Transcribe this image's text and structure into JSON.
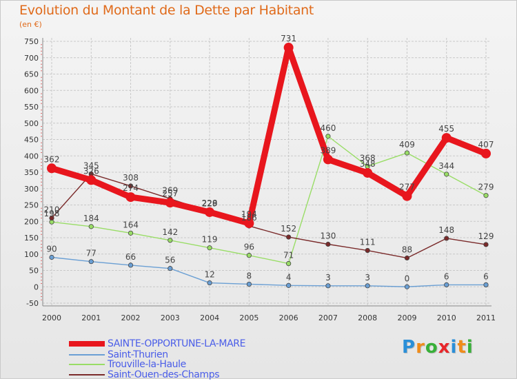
{
  "chart_data": {
    "type": "line",
    "title": "Evolution du Montant de la Dette par Habitant",
    "subtitle": "(en €)",
    "xlabel": "",
    "ylabel": "",
    "x": [
      "2000",
      "2001",
      "2002",
      "2003",
      "2004",
      "2005",
      "2006",
      "2007",
      "2008",
      "2009",
      "2010",
      "2011"
    ],
    "ylim": [
      -50,
      750
    ],
    "yticks": [
      -50,
      0,
      50,
      100,
      150,
      200,
      250,
      300,
      350,
      400,
      450,
      500,
      550,
      600,
      650,
      700,
      750
    ],
    "grid": true,
    "legend_position": "bottom-left",
    "series": [
      {
        "name": "SAINTE-OPPORTUNE-LA-MARE",
        "color": "#e8161d",
        "bold": true,
        "values": [
          362,
          326,
          274,
          257,
          228,
          194,
          731,
          389,
          348,
          277,
          455,
          407
        ]
      },
      {
        "name": "Saint-Thurien",
        "color": "#6a9fd4",
        "bold": false,
        "values": [
          90,
          77,
          66,
          56,
          12,
          8,
          4,
          3,
          3,
          0,
          6,
          6
        ]
      },
      {
        "name": "Trouville-la-Haule",
        "color": "#99dd66",
        "bold": false,
        "values": [
          198,
          184,
          164,
          142,
          119,
          96,
          71,
          460,
          368,
          409,
          344,
          279
        ]
      },
      {
        "name": "Saint-Ouen-des-Champs",
        "color": "#7a2a2a",
        "bold": false,
        "values": [
          210,
          345,
          308,
          269,
          229,
          186,
          152,
          130,
          111,
          88,
          148,
          129
        ]
      }
    ]
  },
  "logo": {
    "letters": [
      "P",
      "r",
      "o",
      "x",
      "i",
      "t",
      "i"
    ],
    "colors": [
      "#2a8fd8",
      "#f08c1a",
      "#38b038",
      "#e8262a",
      "#2a8fd8",
      "#f08c1a",
      "#38b038"
    ]
  }
}
